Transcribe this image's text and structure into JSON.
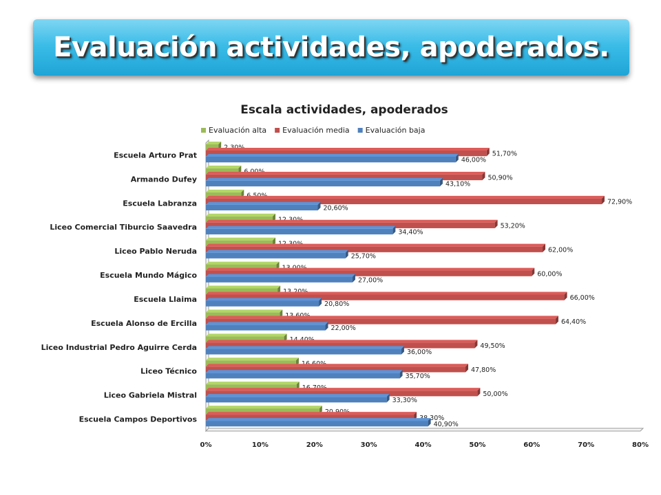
{
  "header": {
    "title": "Evaluación actividades, apoderados."
  },
  "chart_data": {
    "type": "bar",
    "orientation": "horizontal",
    "title": "Escala actividades, apoderados",
    "categories": [
      "Escuela Arturo Prat",
      "Armando Dufey",
      "Escuela Labranza",
      "Liceo Comercial Tiburcio Saavedra",
      "Liceo Pablo Neruda",
      "Escuela Mundo Mágico",
      "Escuela Llaima",
      "Escuela Alonso de Ercilla",
      "Liceo Industrial Pedro Aguirre Cerda",
      "Liceo Técnico",
      "Liceo Gabriela Mistral",
      "Escuela Campos Deportivos"
    ],
    "series": [
      {
        "name": "Evaluación alta",
        "color": "#9bbb59",
        "values": [
          2.3,
          6.0,
          6.5,
          12.3,
          12.3,
          13.0,
          13.2,
          13.6,
          14.4,
          16.6,
          16.7,
          20.9
        ],
        "labels": [
          "2,30%",
          "6,00%",
          "6,50%",
          "12,30%",
          "12,30%",
          "13,00%",
          "13,20%",
          "13,60%",
          "14,40%",
          "16,60%",
          "16,70%",
          "20,90%"
        ]
      },
      {
        "name": "Evaluación media",
        "color": "#c0504d",
        "values": [
          51.7,
          50.9,
          72.9,
          53.2,
          62.0,
          60.0,
          66.0,
          64.4,
          49.5,
          47.8,
          50.0,
          38.3
        ],
        "labels": [
          "51,70%",
          "50,90%",
          "72,90%",
          "53,20%",
          "62,00%",
          "60,00%",
          "66,00%",
          "64,40%",
          "49,50%",
          "47,80%",
          "50,00%",
          "38,30%"
        ]
      },
      {
        "name": "Evaluación baja",
        "color": "#4f81bd",
        "values": [
          46.0,
          43.1,
          20.6,
          34.4,
          25.7,
          27.0,
          20.8,
          22.0,
          36.0,
          35.7,
          33.3,
          40.9
        ],
        "labels": [
          "46,00%",
          "43,10%",
          "20,60%",
          "34,40%",
          "25,70%",
          "27,00%",
          "20,80%",
          "22,00%",
          "36,00%",
          "35,70%",
          "33,30%",
          "40,90%"
        ]
      }
    ],
    "xlim": [
      0,
      80
    ],
    "xticks": [
      "0%",
      "10%",
      "20%",
      "30%",
      "40%",
      "50%",
      "60%",
      "70%",
      "80%"
    ],
    "legend_position": "top",
    "grid": false
  }
}
